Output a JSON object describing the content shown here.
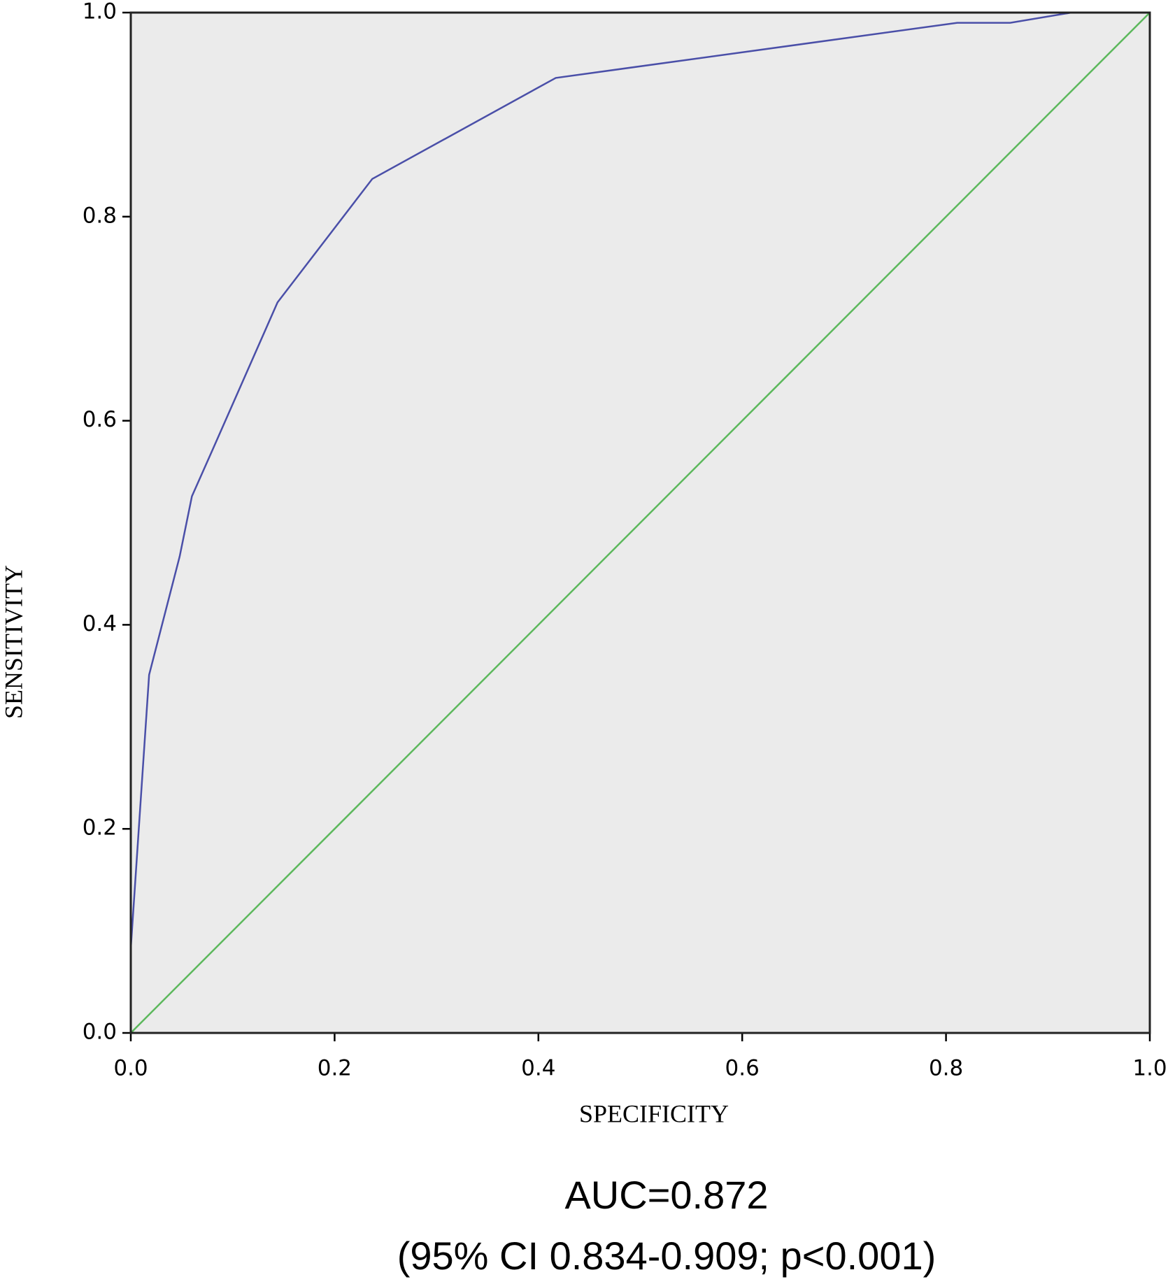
{
  "chart_data": {
    "type": "line",
    "x_label": "SPECIFICITY",
    "y_label": "SENSITIVITY",
    "xlim": [
      0,
      1
    ],
    "ylim": [
      0,
      1
    ],
    "xticks": [
      {
        "value": 0,
        "label": "0.0"
      },
      0.2,
      0.4,
      0.6,
      0.8,
      {
        "value": 1,
        "label": "1.0"
      }
    ],
    "yticks": [
      {
        "value": 0,
        "label": "0.0"
      },
      0.2,
      0.4,
      0.6,
      0.8,
      {
        "value": 1,
        "label": "1.0"
      }
    ],
    "background": "#ebebeb",
    "series": [
      {
        "color": "#4a4fa8",
        "x": [
          0,
          0,
          0.018,
          0.048,
          0.06,
          0.08,
          0.144,
          0.237,
          0.417,
          0.811,
          0.863,
          0.923,
          1
        ],
        "values": [
          0,
          0.083,
          0.351,
          0.467,
          0.526,
          0.571,
          0.716,
          0.837,
          0.936,
          0.99,
          0.99,
          1,
          1
        ]
      },
      {
        "color": "#5cb85c",
        "x": [
          0,
          1
        ],
        "values": [
          0,
          1
        ]
      }
    ],
    "annotations": [
      "AUC=0.872",
      "(95% CI 0.834-0.909; p<0.001)"
    ]
  }
}
